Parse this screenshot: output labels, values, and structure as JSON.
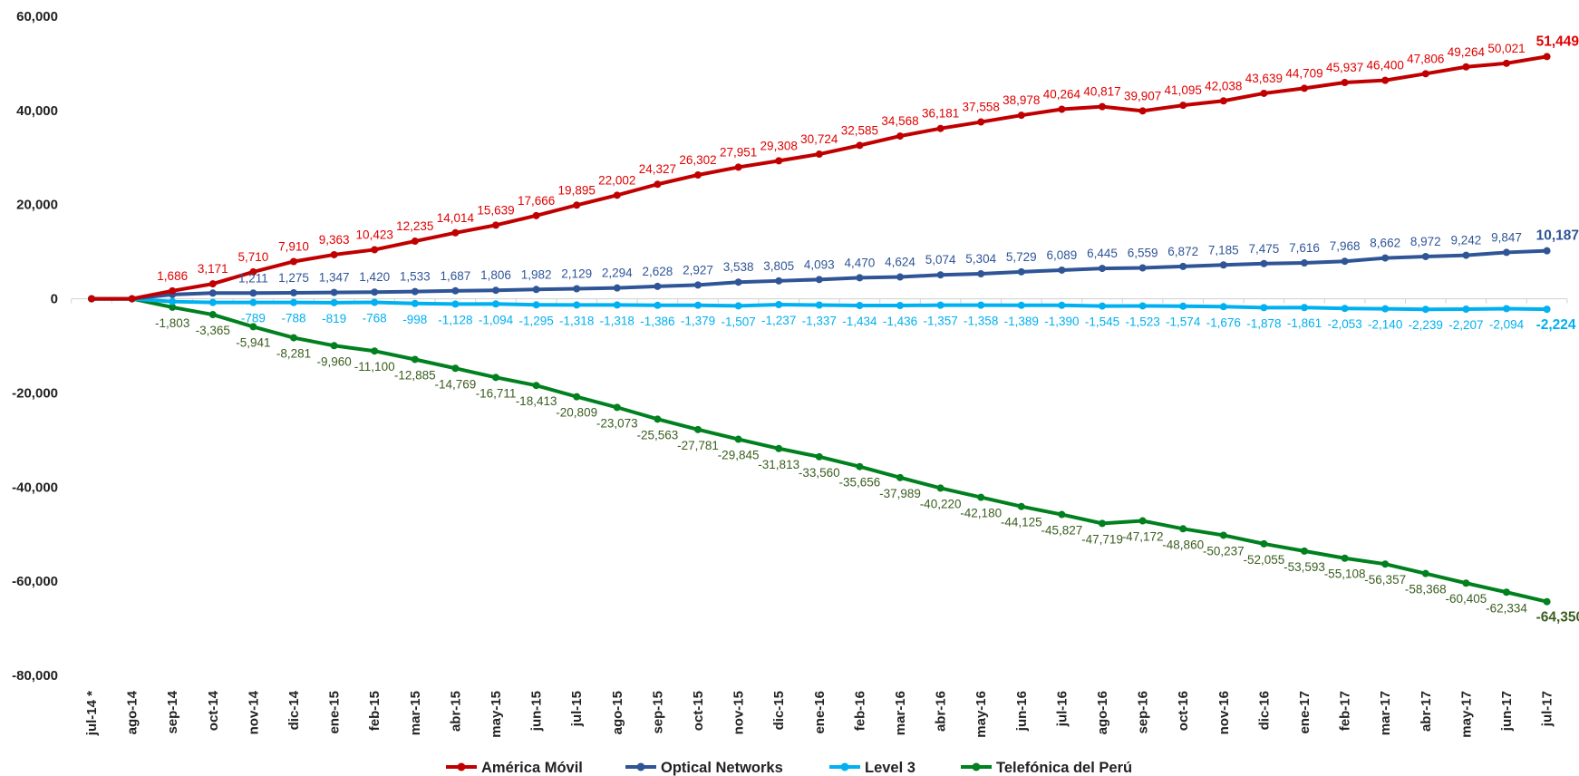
{
  "chart_data": {
    "type": "line",
    "categories": [
      "jul-14 *",
      "ago-14",
      "sep-14",
      "oct-14",
      "nov-14",
      "dic-14",
      "ene-15",
      "feb-15",
      "mar-15",
      "abr-15",
      "may-15",
      "jun-15",
      "jul-15",
      "ago-15",
      "sep-15",
      "oct-15",
      "nov-15",
      "dic-15",
      "ene-16",
      "feb-16",
      "mar-16",
      "abr-16",
      "may-16",
      "jun-16",
      "jul-16",
      "ago-16",
      "sep-16",
      "oct-16",
      "nov-16",
      "dic-16",
      "ene-17",
      "feb-17",
      "mar-17",
      "abr-17",
      "may-17",
      "jun-17",
      "jul-17"
    ],
    "ylim": [
      -80000,
      60000
    ],
    "yticks": [
      60000,
      40000,
      20000,
      0,
      -20000,
      -40000,
      -60000,
      -80000
    ],
    "ytick_labels": [
      "60,000",
      "40,000",
      "20,000",
      "0",
      "-20,000",
      "-40,000",
      "-60,000",
      "-80,000"
    ],
    "grid": false,
    "legend_position": "bottom",
    "series": [
      {
        "name": "América Móvil",
        "color": "#C00000",
        "label_color": "#E00000",
        "values": [
          0,
          0,
          1686,
          3171,
          5710,
          7910,
          9363,
          10423,
          12235,
          14014,
          15639,
          17666,
          19895,
          22002,
          24327,
          26302,
          27951,
          29308,
          30724,
          32585,
          34568,
          36181,
          37558,
          38978,
          40264,
          40817,
          39907,
          41095,
          42038,
          43639,
          44709,
          45937,
          46400,
          47806,
          49264,
          50021,
          51449
        ],
        "labels": [
          "",
          "",
          "1,686",
          "3,171",
          "5,710",
          "7,910",
          "9,363",
          "10,423",
          "12,235",
          "14,014",
          "15,639",
          "17,666",
          "19,895",
          "22,002",
          "24,327",
          "26,302",
          "27,951",
          "29,308",
          "30,724",
          "32,585",
          "34,568",
          "36,181",
          "37,558",
          "38,978",
          "40,264",
          "40,817",
          "39,907",
          "41,095",
          "42,038",
          "43,639",
          "44,709",
          "45,937",
          "46,400",
          "47,806",
          "49,264",
          "50,021",
          "51,449"
        ]
      },
      {
        "name": "Optical Networks",
        "color": "#2F5597",
        "label_color": "#2F5597",
        "values": [
          0,
          0,
          900,
          1211,
          1211,
          1275,
          1347,
          1420,
          1533,
          1687,
          1806,
          1982,
          2129,
          2294,
          2628,
          2927,
          3538,
          3805,
          4093,
          4470,
          4624,
          5074,
          5304,
          5729,
          6089,
          6445,
          6559,
          6872,
          7185,
          7475,
          7616,
          7968,
          8662,
          8972,
          9242,
          9847,
          10187
        ],
        "labels": [
          "",
          "",
          "",
          "",
          "1,211",
          "1,275",
          "1,347",
          "1,420",
          "1,533",
          "1,687",
          "1,806",
          "1,982",
          "2,129",
          "2,294",
          "2,628",
          "2,927",
          "3,538",
          "3,805",
          "4,093",
          "4,470",
          "4,624",
          "5,074",
          "5,304",
          "5,729",
          "6,089",
          "6,445",
          "6,559",
          "6,872",
          "7,185",
          "7,475",
          "7,616",
          "7,968",
          "8,662",
          "8,972",
          "9,242",
          "9,847",
          "10,187"
        ]
      },
      {
        "name": "Level 3",
        "color": "#00B0F0",
        "label_color": "#00B0F0",
        "values": [
          0,
          0,
          -600,
          -789,
          -789,
          -788,
          -819,
          -768,
          -998,
          -1128,
          -1094,
          -1295,
          -1318,
          -1318,
          -1386,
          -1379,
          -1507,
          -1237,
          -1337,
          -1434,
          -1436,
          -1357,
          -1358,
          -1389,
          -1390,
          -1545,
          -1523,
          -1574,
          -1676,
          -1878,
          -1861,
          -2053,
          -2140,
          -2239,
          -2207,
          -2094,
          -2224
        ],
        "labels": [
          "",
          "",
          "",
          "",
          "-789",
          "-788",
          "-819",
          "-768",
          "-998",
          "-1,128",
          "-1,094",
          "-1,295",
          "-1,318",
          "-1,318",
          "-1,386",
          "-1,379",
          "-1,507",
          "-1,237",
          "-1,337",
          "-1,434",
          "-1,436",
          "-1,357",
          "-1,358",
          "-1,389",
          "-1,390",
          "-1,545",
          "-1,523",
          "-1,574",
          "-1,676",
          "-1,878",
          "-1,861",
          "-2,053",
          "-2,140",
          "-2,239",
          "-2,207",
          "-2,094",
          "-2,224"
        ]
      },
      {
        "name": "Telefónica del Perú",
        "color": "#00801E",
        "label_color": "#3B5E1F",
        "values": [
          0,
          0,
          -1803,
          -3365,
          -5941,
          -8281,
          -9960,
          -11100,
          -12885,
          -14769,
          -16711,
          -18413,
          -20809,
          -23073,
          -25563,
          -27781,
          -29845,
          -31813,
          -33560,
          -35656,
          -37989,
          -40220,
          -42180,
          -44125,
          -45827,
          -47719,
          -47172,
          -48860,
          -50237,
          -52055,
          -53593,
          -55108,
          -56357,
          -58368,
          -60405,
          -62334,
          -64350
        ],
        "labels": [
          "",
          "",
          "-1,803",
          "-3,365",
          "-5,941",
          "-8,281",
          "-9,960",
          "-11,100",
          "-12,885",
          "-14,769",
          "-16,711",
          "-18,413",
          "-20,809",
          "-23,073",
          "-25,563",
          "-27,781",
          "-29,845",
          "-31,813",
          "-33,560",
          "-35,656",
          "-37,989",
          "-40,220",
          "-42,180",
          "-44,125",
          "-45,827",
          "-47,719",
          "-47,172",
          "-48,860",
          "-50,237",
          "-52,055",
          "-53,593",
          "-55,108",
          "-56,357",
          "-58,368",
          "-60,405",
          "-62,334",
          "-64,350"
        ]
      }
    ]
  }
}
